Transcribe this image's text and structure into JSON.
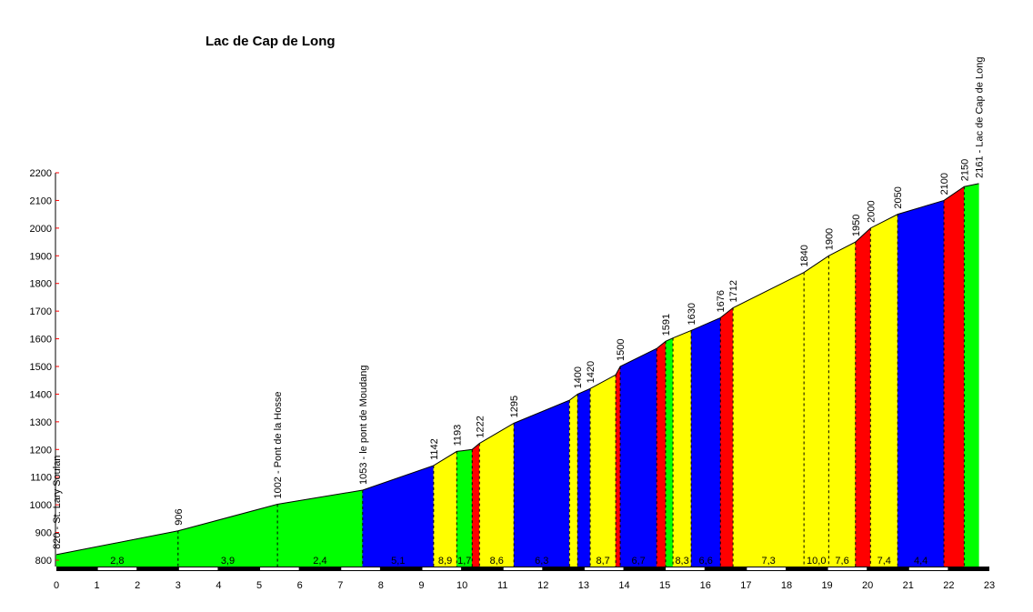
{
  "chart_data": {
    "type": "area",
    "title": "Lac de Cap de Long",
    "xlabel": "",
    "ylabel": "",
    "xlim": [
      0,
      23
    ],
    "ylim": [
      800,
      2200
    ],
    "x_ticks": [
      0,
      1,
      2,
      3,
      4,
      5,
      6,
      7,
      8,
      9,
      10,
      11,
      12,
      13,
      14,
      15,
      16,
      17,
      18,
      19,
      20,
      21,
      22,
      23
    ],
    "y_ticks": [
      800,
      900,
      1000,
      1100,
      1200,
      1300,
      1400,
      1500,
      1600,
      1700,
      1800,
      1900,
      2000,
      2100,
      2200
    ],
    "grid": false,
    "colors": {
      "green": "#00ff00",
      "blue": "#0000ff",
      "yellow": "#ffff00",
      "red": "#ff0000",
      "axis_tick": "#ff0000"
    },
    "points": [
      {
        "km": 0,
        "elev": 820,
        "label": "820 - St. Lary Soulan"
      },
      {
        "km": 3.0,
        "elev": 906,
        "label": "906"
      },
      {
        "km": 5.45,
        "elev": 1002,
        "label": "1002 - Pont de la Hosse"
      },
      {
        "km": 7.55,
        "elev": 1053,
        "label": "1053 - le pont de Moudang"
      },
      {
        "km": 9.3,
        "elev": 1142,
        "label": "1142"
      },
      {
        "km": 9.87,
        "elev": 1193,
        "label": "1193"
      },
      {
        "km": 10.25,
        "elev": 1200,
        "label": ""
      },
      {
        "km": 10.43,
        "elev": 1222,
        "label": "1222"
      },
      {
        "km": 11.28,
        "elev": 1295,
        "label": "1295"
      },
      {
        "km": 12.65,
        "elev": 1378,
        "label": ""
      },
      {
        "km": 12.85,
        "elev": 1400,
        "label": "1400"
      },
      {
        "km": 13.16,
        "elev": 1420,
        "label": "1420"
      },
      {
        "km": 13.79,
        "elev": 1470,
        "label": ""
      },
      {
        "km": 13.9,
        "elev": 1500,
        "label": "1500"
      },
      {
        "km": 14.8,
        "elev": 1565,
        "label": ""
      },
      {
        "km": 15.02,
        "elev": 1591,
        "label": "1591"
      },
      {
        "km": 15.2,
        "elev": 1603,
        "label": ""
      },
      {
        "km": 15.65,
        "elev": 1630,
        "label": "1630"
      },
      {
        "km": 16.37,
        "elev": 1676,
        "label": "1676"
      },
      {
        "km": 16.68,
        "elev": 1712,
        "label": "1712"
      },
      {
        "km": 18.43,
        "elev": 1840,
        "label": "1840"
      },
      {
        "km": 19.04,
        "elev": 1900,
        "label": "1900"
      },
      {
        "km": 19.7,
        "elev": 1950,
        "label": "1950"
      },
      {
        "km": 20.07,
        "elev": 2000,
        "label": "2000"
      },
      {
        "km": 20.74,
        "elev": 2050,
        "label": "2050"
      },
      {
        "km": 21.88,
        "elev": 2100,
        "label": "2100"
      },
      {
        "km": 22.38,
        "elev": 2150,
        "label": "2150"
      },
      {
        "km": 22.74,
        "elev": 2161,
        "label": "2161 - Lac de Cap de Long"
      }
    ],
    "segments": [
      {
        "color": "green",
        "gradient": "2,8"
      },
      {
        "color": "green",
        "gradient": "3,9"
      },
      {
        "color": "green",
        "gradient": "2,4"
      },
      {
        "color": "blue",
        "gradient": "5,1"
      },
      {
        "color": "yellow",
        "gradient": "8,9"
      },
      {
        "color": "green",
        "gradient": "1,7"
      },
      {
        "color": "red",
        "gradient": ""
      },
      {
        "color": "yellow",
        "gradient": "8,6"
      },
      {
        "color": "blue",
        "gradient": "6,3"
      },
      {
        "color": "yellow",
        "gradient": ""
      },
      {
        "color": "blue",
        "gradient": ""
      },
      {
        "color": "yellow",
        "gradient": "8,7"
      },
      {
        "color": "red",
        "gradient": ""
      },
      {
        "color": "blue",
        "gradient": "6,7"
      },
      {
        "color": "red",
        "gradient": ""
      },
      {
        "color": "green",
        "gradient": ""
      },
      {
        "color": "yellow",
        "gradient": "8,3"
      },
      {
        "color": "blue",
        "gradient": "6,6"
      },
      {
        "color": "red",
        "gradient": ""
      },
      {
        "color": "yellow",
        "gradient": "7,3"
      },
      {
        "color": "yellow",
        "gradient": "10,0"
      },
      {
        "color": "yellow",
        "gradient": "7,6"
      },
      {
        "color": "red",
        "gradient": ""
      },
      {
        "color": "yellow",
        "gradient": "7,4"
      },
      {
        "color": "blue",
        "gradient": "4,4"
      },
      {
        "color": "red",
        "gradient": ""
      },
      {
        "color": "green",
        "gradient": ""
      }
    ]
  }
}
